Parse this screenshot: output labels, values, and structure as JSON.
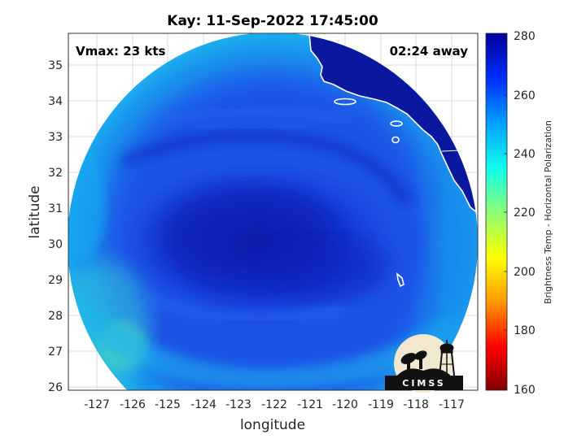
{
  "title": "Kay: 11-Sep-2022 17:45:00",
  "vmax_text": "Vmax: 23 kts",
  "away_text": "02:24 away",
  "xlabel": "longitude",
  "ylabel": "latitude",
  "colorbar": {
    "label": "Brightness Temp - Horizontal Polarization",
    "ticks": [
      "160",
      "180",
      "200",
      "220",
      "240",
      "260",
      "280"
    ],
    "range": [
      160,
      280
    ],
    "colors": [
      "#7f0000",
      "#ff0000",
      "#ff9a00",
      "#ffff00",
      "#8aff75",
      "#12ffeb",
      "#009fff",
      "#0030ff",
      "#00009a"
    ]
  },
  "xticks": [
    "-127",
    "-126",
    "-125",
    "-124",
    "-123",
    "-122",
    "-121",
    "-120",
    "-119",
    "-118",
    "-117"
  ],
  "yticks": [
    "26",
    "27",
    "28",
    "29",
    "30",
    "31",
    "32",
    "33",
    "34",
    "35"
  ],
  "logo_text": "CIMSS",
  "map_data": {
    "lon_range": [
      -127.8,
      -116.3
    ],
    "lat_range": [
      25.9,
      35.9
    ],
    "grid": true,
    "storm": "Kay",
    "storm_center_approx": [
      -122.1,
      30.1
    ]
  }
}
